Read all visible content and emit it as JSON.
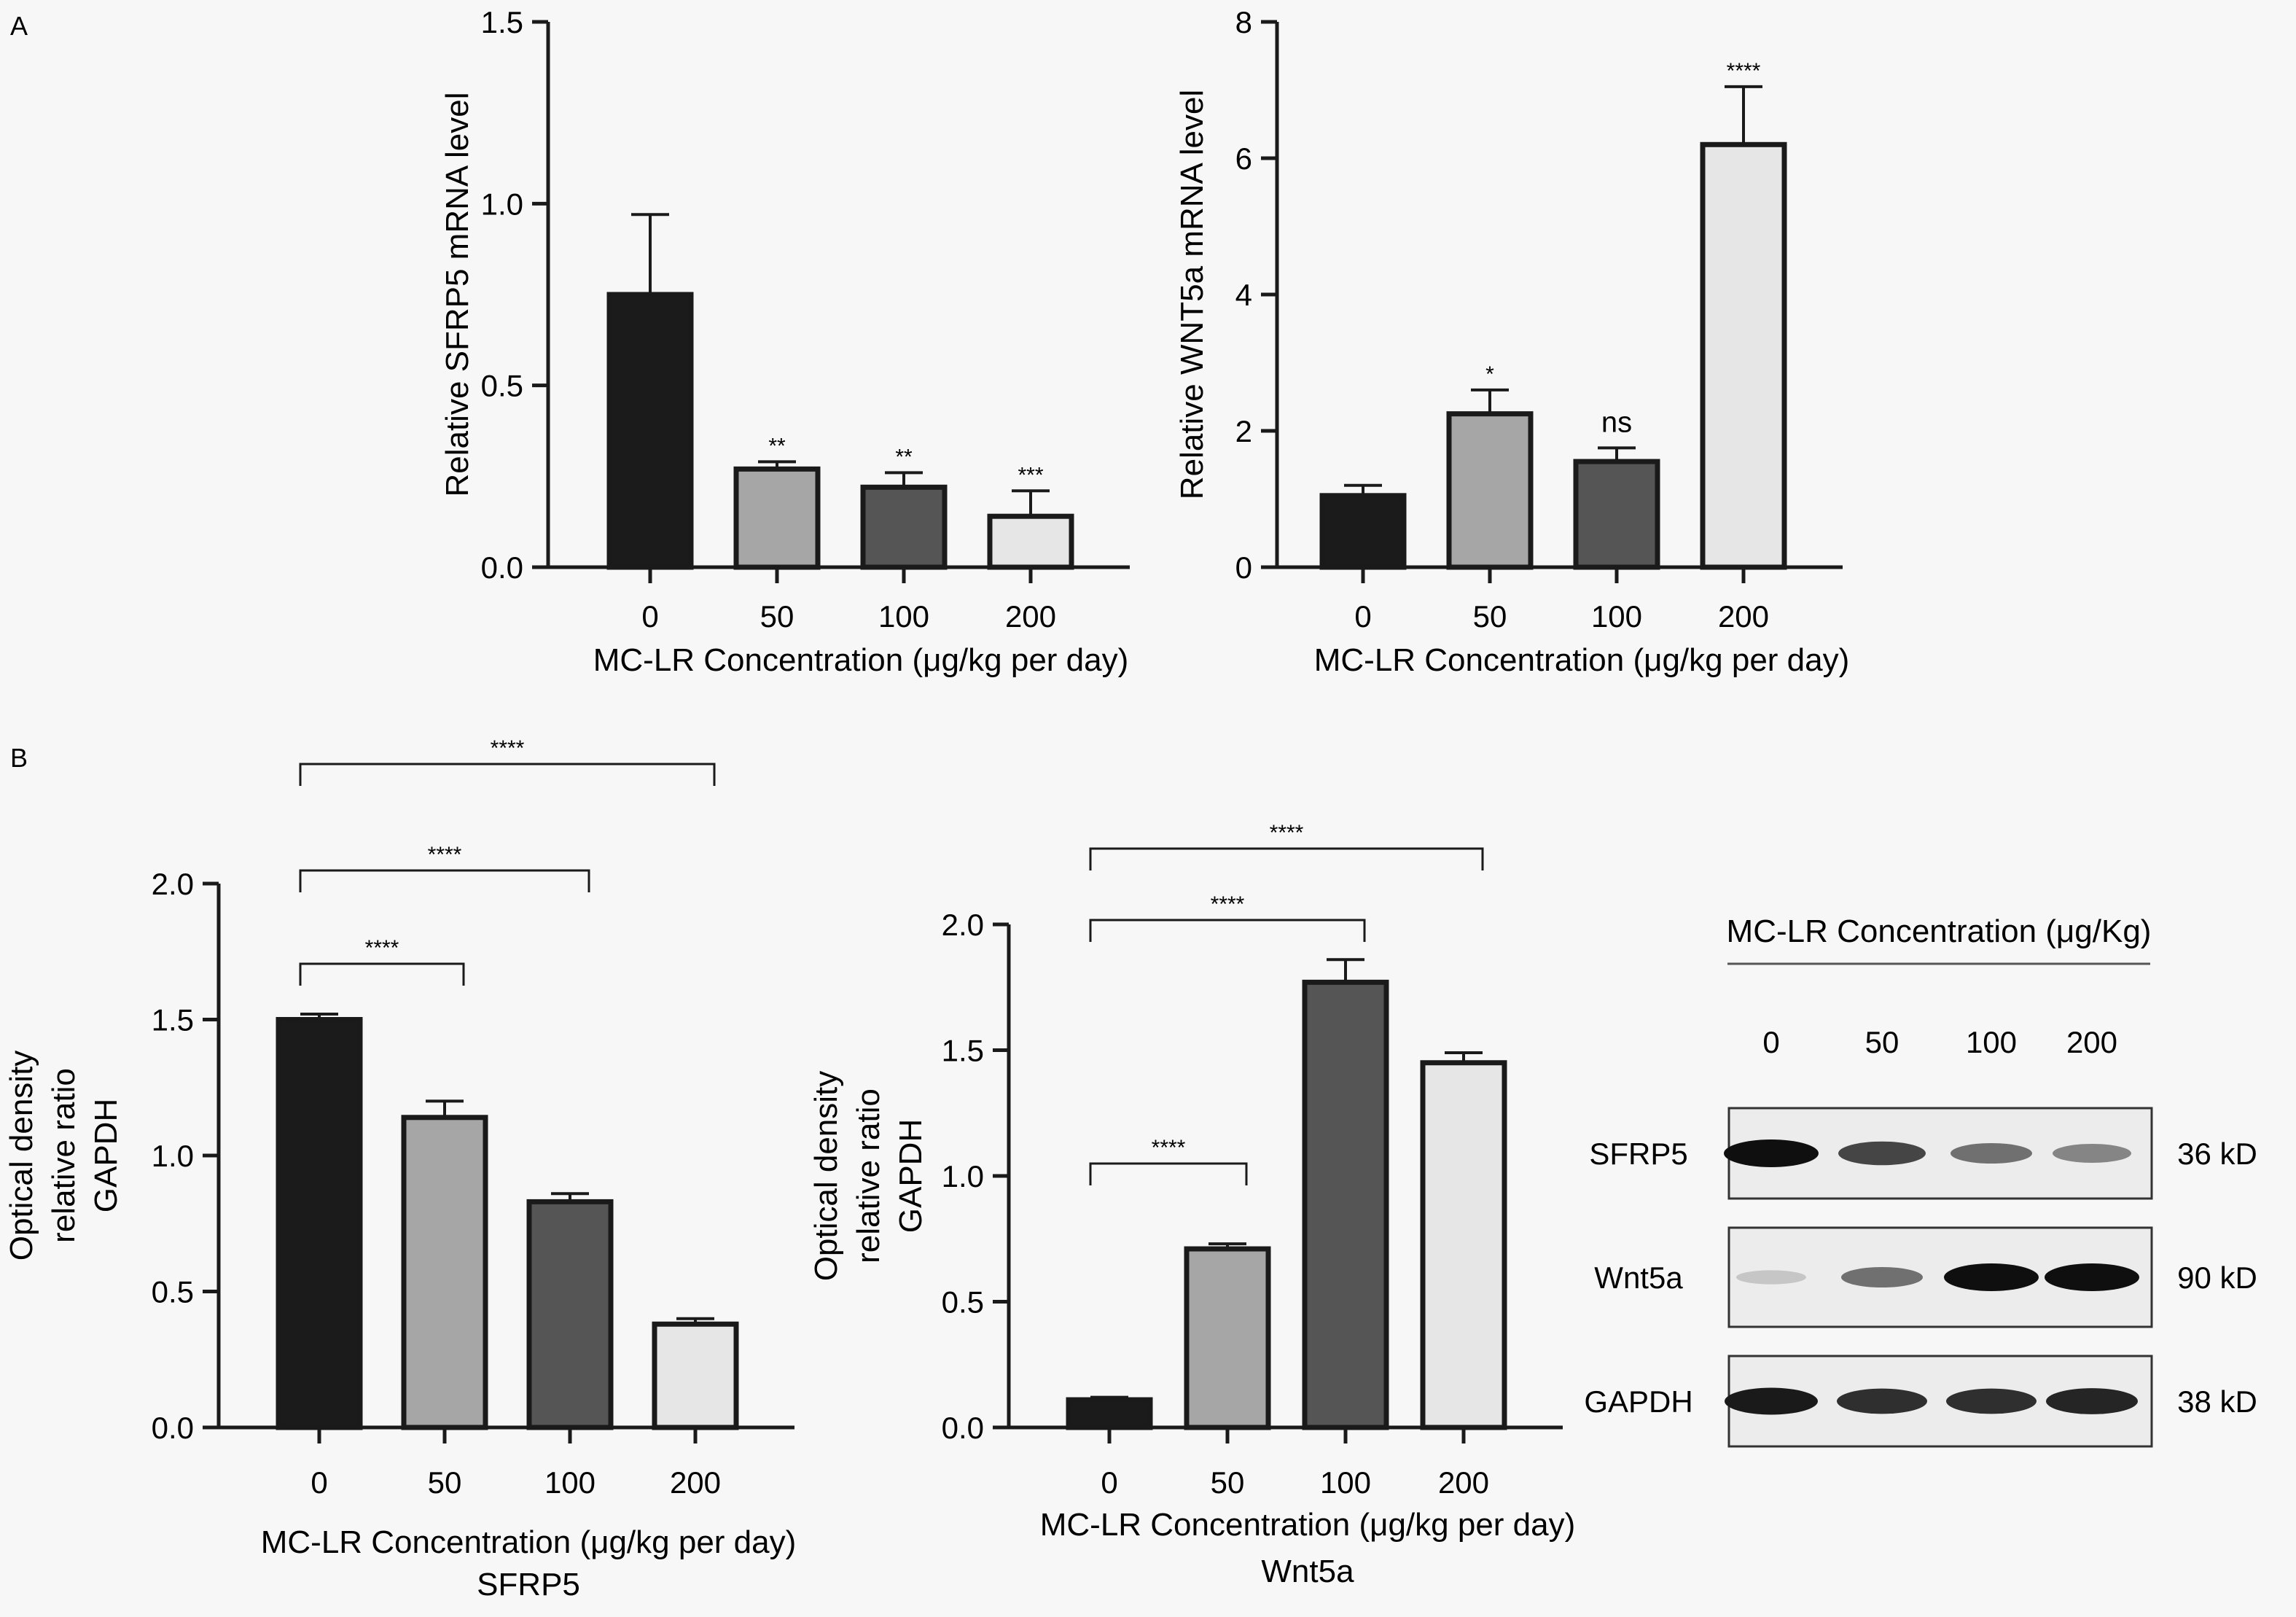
{
  "figure": {
    "panel_a": "A",
    "panel_b": "B",
    "blot": {
      "header": "MC-LR Concentration (μg/Kg)",
      "lanes": [
        "0",
        "50",
        "100",
        "200"
      ],
      "rows": [
        {
          "protein": "SFRP5",
          "size": "36 kD",
          "intensity": [
            1.0,
            0.75,
            0.55,
            0.45
          ]
        },
        {
          "protein": "Wnt5a",
          "size": "90 kD",
          "intensity": [
            0.15,
            0.55,
            1.0,
            1.0
          ]
        },
        {
          "protein": "GAPDH",
          "size": "38 kD",
          "intensity": [
            0.95,
            0.85,
            0.85,
            0.9
          ]
        }
      ]
    }
  },
  "colors": {
    "bar_fills": [
      "#1b1b1b",
      "#a6a6a6",
      "#555555",
      "#e6e6e6"
    ],
    "axis": "#1a1a1a",
    "background": "#f7f7f7"
  },
  "chart_data": [
    {
      "id": "sfrp5_mrna",
      "type": "bar",
      "categories": [
        "0",
        "50",
        "100",
        "200"
      ],
      "values": [
        0.75,
        0.27,
        0.22,
        0.14
      ],
      "errors": [
        0.22,
        0.02,
        0.04,
        0.07
      ],
      "significance": [
        "",
        "**",
        "**",
        "***"
      ],
      "xlabel": "MC-LR Concentration (μg/kg per day)",
      "xlabel2": "",
      "ylabel": [
        "Relative SFRP5 mRNA level"
      ],
      "ylim": [
        0,
        1.5
      ],
      "yticks": [
        "0.0",
        "0.5",
        "1.0",
        "1.5"
      ],
      "brackets": []
    },
    {
      "id": "wnt5a_mrna",
      "type": "bar",
      "categories": [
        "0",
        "50",
        "100",
        "200"
      ],
      "values": [
        1.05,
        2.25,
        1.55,
        6.2
      ],
      "errors": [
        0.15,
        0.35,
        0.2,
        0.85
      ],
      "significance": [
        "",
        "*",
        "ns",
        "****"
      ],
      "xlabel": "MC-LR Concentration (μg/kg per day)",
      "xlabel2": "",
      "ylabel": [
        "Relative WNT5a mRNA level"
      ],
      "ylim": [
        0,
        8
      ],
      "yticks": [
        "0",
        "2",
        "4",
        "6",
        "8"
      ],
      "brackets": []
    },
    {
      "id": "sfrp5_od",
      "type": "bar",
      "categories": [
        "0",
        "50",
        "100",
        "200"
      ],
      "values": [
        1.5,
        1.14,
        0.83,
        0.38
      ],
      "errors": [
        0.02,
        0.06,
        0.03,
        0.02
      ],
      "significance": [
        "",
        "",
        "",
        ""
      ],
      "xlabel": "MC-LR Concentration (μg/kg per day)",
      "xlabel2": "SFRP5",
      "ylabel": [
        "Optical density",
        "relative ratio",
        "GAPDH"
      ],
      "ylim": [
        0,
        2.0
      ],
      "yticks": [
        "0.0",
        "0.5",
        "1.0",
        "1.5",
        "2.0"
      ],
      "brackets": [
        {
          "from": 0,
          "to": 1,
          "label": "****"
        },
        {
          "from": 0,
          "to": 2,
          "label": "****"
        },
        {
          "from": 0,
          "to": 3,
          "label": "****"
        }
      ]
    },
    {
      "id": "wnt5a_od",
      "type": "bar",
      "categories": [
        "0",
        "50",
        "100",
        "200"
      ],
      "values": [
        0.11,
        0.71,
        1.77,
        1.45
      ],
      "errors": [
        0.01,
        0.02,
        0.09,
        0.04
      ],
      "significance": [
        "",
        "",
        "",
        ""
      ],
      "xlabel": "MC-LR Concentration (μg/kg per day)",
      "xlabel2": "Wnt5a",
      "ylabel": [
        "Optical density",
        "relative ratio",
        "GAPDH"
      ],
      "ylim": [
        0,
        2.0
      ],
      "yticks": [
        "0.0",
        "0.5",
        "1.0",
        "1.5",
        "2.0"
      ],
      "brackets": [
        {
          "from": 0,
          "to": 1,
          "label": "****"
        },
        {
          "from": 0,
          "to": 2,
          "label": "****"
        },
        {
          "from": 0,
          "to": 3,
          "label": "****"
        }
      ]
    }
  ]
}
